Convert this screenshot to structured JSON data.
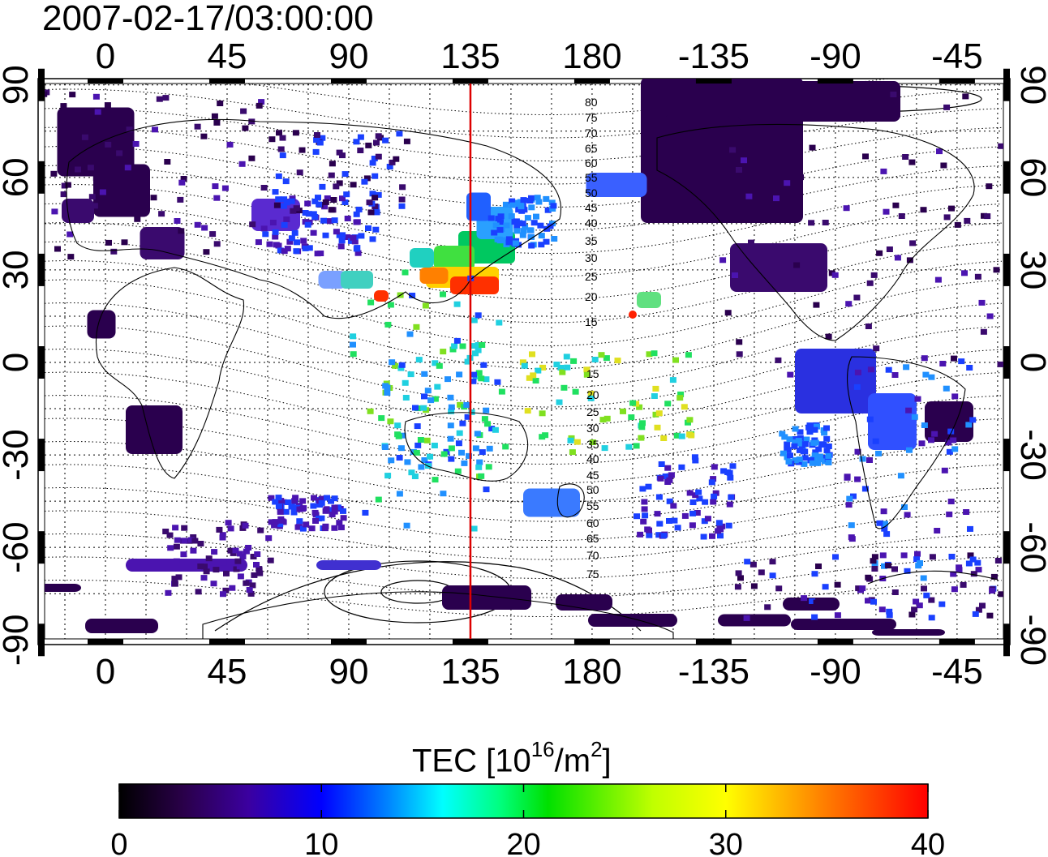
{
  "title": "2007-02-17/03:00:00",
  "map": {
    "lon_ticks_top": [
      "0",
      "45",
      "90",
      "135",
      "180",
      "-135",
      "-90",
      "-45"
    ],
    "lon_ticks_bottom": [
      "0",
      "45",
      "90",
      "135",
      "180",
      "-135",
      "-90",
      "-45"
    ],
    "lat_ticks_left": [
      "90",
      "60",
      "30",
      "0",
      "-30",
      "-60",
      "-90"
    ],
    "lat_ticks_right": [
      "90",
      "60",
      "30",
      "0",
      "-30",
      "-60",
      "-90"
    ],
    "meridian_marker_lon": 135,
    "meridian_marker_color": "#dd0000",
    "magnetic_latitude_labels_north": [
      "80",
      "75",
      "70",
      "65",
      "60",
      "55",
      "50",
      "45",
      "40",
      "35",
      "30",
      "25",
      "20",
      "15"
    ],
    "magnetic_latitude_labels_south": [
      "15",
      "20",
      "25",
      "30",
      "35",
      "40",
      "45",
      "50",
      "55",
      "60",
      "65",
      "70",
      "75"
    ]
  },
  "colorbar": {
    "label_main": "TEC  [10",
    "label_exp": "16",
    "label_unit": "/m",
    "label_unit_exp": "2",
    "label_end": "]",
    "ticks": [
      "0",
      "10",
      "20",
      "30",
      "40"
    ],
    "range": [
      0,
      40
    ],
    "colors": [
      "#000000",
      "#2a004a",
      "#3b00a0",
      "#0000ff",
      "#0080ff",
      "#00ffff",
      "#00ff80",
      "#00e000",
      "#c0ff00",
      "#ffff00",
      "#ff8000",
      "#ff0000"
    ]
  }
}
